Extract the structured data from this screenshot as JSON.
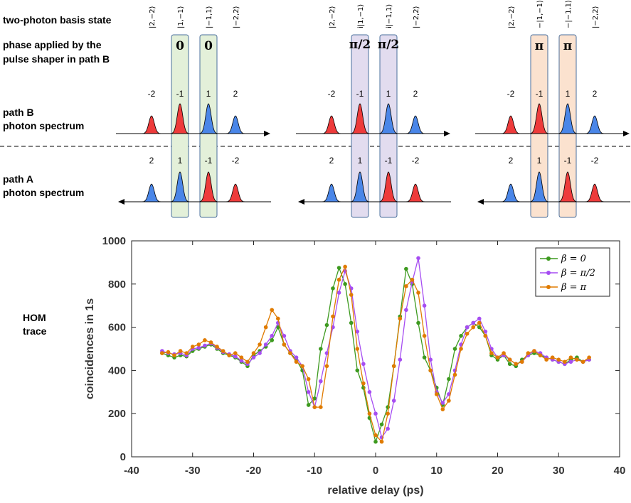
{
  "labels": {
    "basis": "two-photon basis state",
    "phase_line1": "phase applied by the",
    "phase_line2": "pulse shaper in path B",
    "pathB_line1": "path B",
    "pathB_line2": "photon spectrum",
    "pathA_line1": "path A",
    "pathA_line2": "photon spectrum",
    "hom_line1": "HOM",
    "hom_line2": "trace"
  },
  "panels": [
    {
      "kets": [
        "|2,−2⟩",
        "|1,−1⟩",
        "|−1,1⟩",
        "|−2,2⟩"
      ],
      "phase": [
        "0",
        "0"
      ],
      "phase_kind": "zero",
      "box_color": "#e3f0d9",
      "pathB_labels": [
        "-2",
        "-1",
        "1",
        "2"
      ],
      "pathA_labels": [
        "2",
        "1",
        "-1",
        "-2"
      ]
    },
    {
      "kets": [
        "|2,−2⟩",
        "i|1,−1⟩",
        "i|−1,1⟩",
        "|−2,2⟩"
      ],
      "phase": [
        "π/2",
        "π/2"
      ],
      "phase_kind": "half",
      "box_color": "#e2dcef",
      "pathB_labels": [
        "-2",
        "-1",
        "1",
        "2"
      ],
      "pathA_labels": [
        "2",
        "1",
        "-1",
        "-2"
      ]
    },
    {
      "kets": [
        "|2,−2⟩",
        "−|1,−1⟩",
        "−|−1,1⟩",
        "|−2,2⟩"
      ],
      "phase": [
        "π",
        "π"
      ],
      "phase_kind": "pi",
      "box_color": "#fbe2cf",
      "pathB_labels": [
        "-2",
        "-1",
        "1",
        "2"
      ],
      "pathA_labels": [
        "2",
        "1",
        "-1",
        "-2"
      ]
    }
  ],
  "peak_colors": {
    "red": "#ee3b3b",
    "blue": "#4a86e8"
  },
  "chart_data": {
    "type": "line",
    "xlabel": "relative delay (ps)",
    "ylabel": "coincidences in 1s",
    "xlim": [
      -40,
      40
    ],
    "ylim": [
      0,
      1000
    ],
    "xticks": [
      -40,
      -30,
      -20,
      -10,
      0,
      10,
      20,
      30,
      40
    ],
    "yticks": [
      0,
      200,
      400,
      600,
      800,
      1000
    ],
    "legend_position": "top-right",
    "series": [
      {
        "name": "β = 0",
        "color": "#3d9a1f",
        "x": [
          -35,
          -34,
          -33,
          -32,
          -31,
          -30,
          -29,
          -28,
          -27,
          -26,
          -25,
          -24,
          -23,
          -22,
          -21,
          -20,
          -19,
          -18,
          -17,
          -16,
          -15,
          -14,
          -13,
          -12,
          -11,
          -10,
          -9,
          -8,
          -7,
          -6,
          -5,
          -4,
          -3,
          -2,
          -1,
          0,
          1,
          2,
          3,
          4,
          5,
          6,
          7,
          8,
          9,
          10,
          11,
          12,
          13,
          14,
          15,
          16,
          17,
          18,
          19,
          20,
          21,
          22,
          23,
          24,
          25,
          26,
          27,
          28,
          29,
          30,
          31,
          32,
          33,
          34,
          35
        ],
        "y": [
          480,
          470,
          460,
          470,
          465,
          490,
          500,
          510,
          520,
          500,
          480,
          470,
          460,
          440,
          420,
          470,
          490,
          510,
          540,
          600,
          520,
          480,
          450,
          400,
          240,
          270,
          500,
          610,
          780,
          875,
          800,
          620,
          400,
          320,
          180,
          70,
          150,
          230,
          420,
          650,
          870,
          800,
          620,
          460,
          400,
          320,
          240,
          360,
          500,
          560,
          600,
          620,
          600,
          560,
          470,
          450,
          470,
          430,
          420,
          450,
          470,
          480,
          470,
          460,
          450,
          440,
          430,
          450,
          460,
          440,
          450
        ]
      },
      {
        "name": "β = π/2",
        "color": "#a64df2",
        "x": [
          -35,
          -34,
          -33,
          -32,
          -31,
          -30,
          -29,
          -28,
          -27,
          -26,
          -25,
          -24,
          -23,
          -22,
          -21,
          -20,
          -19,
          -18,
          -17,
          -16,
          -15,
          -14,
          -13,
          -12,
          -11,
          -10,
          -9,
          -8,
          -7,
          -6,
          -5,
          -4,
          -3,
          -2,
          -1,
          0,
          1,
          2,
          3,
          4,
          5,
          6,
          7,
          8,
          9,
          10,
          11,
          12,
          13,
          14,
          15,
          16,
          17,
          18,
          19,
          20,
          21,
          22,
          23,
          24,
          25,
          26,
          27,
          28,
          29,
          30,
          31,
          32,
          33,
          34,
          35
        ],
        "y": [
          490,
          480,
          475,
          480,
          470,
          500,
          505,
          515,
          525,
          505,
          485,
          475,
          465,
          445,
          430,
          460,
          480,
          520,
          560,
          620,
          560,
          490,
          460,
          420,
          300,
          230,
          350,
          480,
          600,
          760,
          860,
          780,
          580,
          430,
          300,
          200,
          90,
          130,
          260,
          450,
          680,
          810,
          920,
          700,
          450,
          300,
          250,
          290,
          400,
          520,
          600,
          620,
          640,
          580,
          500,
          460,
          470,
          450,
          430,
          440,
          470,
          490,
          480,
          460,
          450,
          440,
          430,
          440,
          450,
          440,
          450
        ]
      },
      {
        "name": "β = π",
        "color": "#e07b00",
        "x": [
          -35,
          -34,
          -33,
          -32,
          -31,
          -30,
          -29,
          -28,
          -27,
          -26,
          -25,
          -24,
          -23,
          -22,
          -21,
          -20,
          -19,
          -18,
          -17,
          -16,
          -15,
          -14,
          -13,
          -12,
          -11,
          -10,
          -9,
          -8,
          -7,
          -6,
          -5,
          -4,
          -3,
          -2,
          -1,
          0,
          1,
          2,
          3,
          4,
          5,
          6,
          7,
          8,
          9,
          10,
          11,
          12,
          13,
          14,
          15,
          16,
          17,
          18,
          19,
          20,
          21,
          22,
          23,
          24,
          25,
          26,
          27,
          28,
          29,
          30,
          31,
          32,
          33,
          34,
          35
        ],
        "y": [
          480,
          485,
          470,
          490,
          480,
          510,
          520,
          540,
          530,
          510,
          490,
          470,
          480,
          460,
          440,
          480,
          520,
          600,
          680,
          640,
          520,
          480,
          440,
          420,
          360,
          230,
          230,
          420,
          650,
          820,
          880,
          750,
          500,
          340,
          200,
          100,
          70,
          200,
          420,
          640,
          790,
          820,
          760,
          560,
          400,
          290,
          220,
          260,
          380,
          500,
          570,
          600,
          620,
          560,
          480,
          460,
          480,
          450,
          430,
          440,
          480,
          490,
          470,
          450,
          460,
          450,
          440,
          460,
          450,
          440,
          460
        ]
      }
    ]
  }
}
